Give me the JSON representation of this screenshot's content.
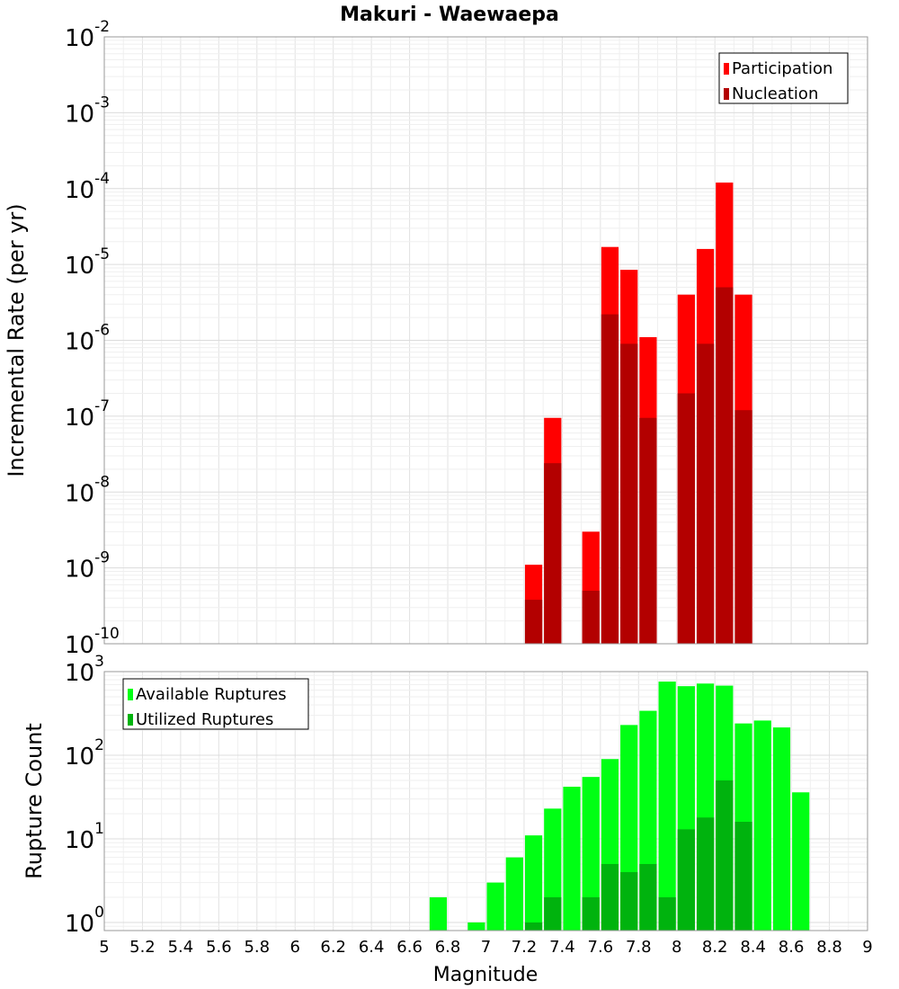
{
  "title": "Makuri - Waewaepa",
  "xlabel": "Magnitude",
  "x_ticks": [
    "5",
    "5.2",
    "5.4",
    "5.6",
    "5.8",
    "6",
    "6.2",
    "6.4",
    "6.6",
    "6.8",
    "7",
    "7.2",
    "7.4",
    "7.6",
    "7.8",
    "8",
    "8.2",
    "8.4",
    "8.6",
    "8.8",
    "9"
  ],
  "colors": {
    "participation": "#ff0000",
    "nucleation": "#b30000",
    "available": "#00ff14",
    "utilized": "#00b30e"
  },
  "chart_data": [
    {
      "type": "bar",
      "title": "Makuri - Waewaepa",
      "xlabel": "",
      "ylabel": "Incremental Rate (per yr)",
      "xlim": [
        5,
        9
      ],
      "ylim": [
        1e-10,
        0.01
      ],
      "yscale": "log",
      "y_tick_exponents": [
        "-2",
        "-3",
        "-4",
        "-5",
        "-6",
        "-7",
        "-8",
        "-9",
        "-10"
      ],
      "grid": true,
      "legend_position": "top-right",
      "bar_width": 0.1,
      "series": [
        {
          "name": "Participation",
          "x": [
            7.25,
            7.35,
            7.55,
            7.65,
            7.75,
            7.85,
            8.05,
            8.15,
            8.25,
            8.35
          ],
          "values": [
            1.1e-09,
            9.5e-08,
            3e-09,
            1.7e-05,
            8.5e-06,
            1.1e-06,
            4e-06,
            1.6e-05,
            0.00012,
            4e-06
          ]
        },
        {
          "name": "Nucleation",
          "x": [
            7.25,
            7.35,
            7.55,
            7.65,
            7.75,
            7.85,
            8.05,
            8.15,
            8.25,
            8.35
          ],
          "values": [
            3.8e-10,
            2.4e-08,
            5e-10,
            2.2e-06,
            9e-07,
            9.5e-08,
            2e-07,
            9e-07,
            5e-06,
            1.2e-07
          ]
        }
      ]
    },
    {
      "type": "bar",
      "title": "",
      "xlabel": "Magnitude",
      "ylabel": "Rupture Count",
      "xlim": [
        5,
        9
      ],
      "ylim": [
        0.8,
        1000
      ],
      "yscale": "log",
      "y_tick_exponents": [
        "3",
        "2",
        "1",
        "0"
      ],
      "grid": true,
      "legend_position": "top-left",
      "bar_width": 0.1,
      "series": [
        {
          "name": "Available Ruptures",
          "x": [
            6.75,
            6.95,
            7.05,
            7.15,
            7.25,
            7.35,
            7.45,
            7.55,
            7.65,
            7.75,
            7.85,
            7.95,
            8.05,
            8.15,
            8.25,
            8.35,
            8.45,
            8.55,
            8.65
          ],
          "values": [
            2,
            1,
            3,
            6,
            11,
            23,
            42,
            55,
            90,
            230,
            340,
            760,
            670,
            720,
            680,
            240,
            260,
            215,
            36
          ]
        },
        {
          "name": "Utilized Ruptures",
          "x": [
            7.25,
            7.35,
            7.55,
            7.65,
            7.75,
            7.85,
            7.95,
            8.05,
            8.15,
            8.25,
            8.35
          ],
          "values": [
            1,
            2,
            2,
            5,
            4,
            5,
            2,
            13,
            18,
            50,
            16
          ]
        }
      ]
    }
  ]
}
